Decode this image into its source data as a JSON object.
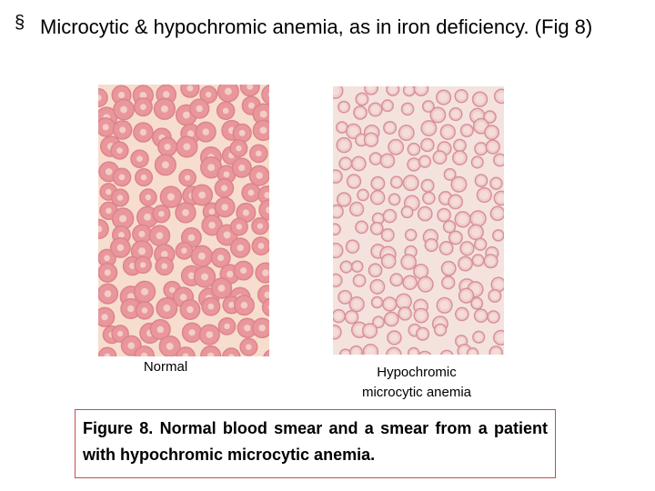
{
  "bullet": {
    "marker": "§",
    "text": "Microcytic & hypochromic anemia, as in iron deficiency. (Fig 8)"
  },
  "images": [
    {
      "label": "Normal"
    },
    {
      "label": "Hypochromic microcytic anemia"
    }
  ],
  "caption": "Figure 8. Normal blood smear and a smear from a patient with hypochromic microcytic anemia."
}
